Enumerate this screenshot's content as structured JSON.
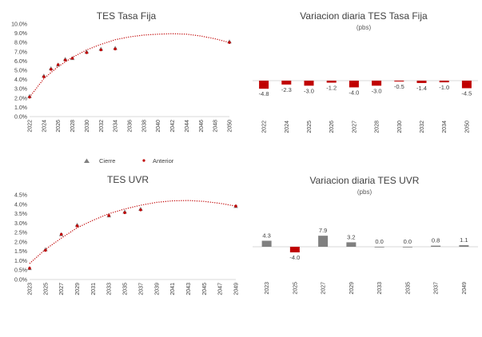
{
  "chart_data": [
    {
      "type": "scatter",
      "title": "TES Tasa Fija",
      "yticks": [
        "10.0%",
        "9.0%",
        "8.0%",
        "7.0%",
        "6.0%",
        "5.0%",
        "4.0%",
        "3.0%",
        "2.0%",
        "1.0%",
        "0.0%"
      ],
      "ylim": [
        0,
        10
      ],
      "xticks": [
        "2022",
        "2024",
        "2026",
        "2028",
        "2030",
        "2032",
        "2034",
        "2036",
        "2038",
        "2040",
        "2042",
        "2044",
        "2046",
        "2048",
        "2050"
      ],
      "xlim": [
        2022,
        2050
      ],
      "series": [
        {
          "name": "Cierre",
          "points": [
            [
              2022,
              2.2
            ],
            [
              2024,
              4.4
            ],
            [
              2025,
              5.2
            ],
            [
              2026,
              5.6
            ],
            [
              2027,
              6.2
            ],
            [
              2028,
              6.3
            ],
            [
              2030,
              7.0
            ],
            [
              2032,
              7.3
            ],
            [
              2034,
              7.4
            ],
            [
              2050,
              8.1
            ]
          ]
        },
        {
          "name": "Anterior",
          "points": [
            [
              2022,
              2.1
            ],
            [
              2024,
              4.3
            ],
            [
              2025,
              5.1
            ],
            [
              2026,
              5.6
            ],
            [
              2027,
              6.1
            ],
            [
              2028,
              6.3
            ],
            [
              2030,
              6.9
            ],
            [
              2032,
              7.2
            ],
            [
              2034,
              7.3
            ],
            [
              2050,
              8.0
            ]
          ]
        }
      ],
      "trend": {
        "name": "Anterior trend",
        "points": [
          [
            2022,
            2.1
          ],
          [
            2024,
            4.1
          ],
          [
            2026,
            5.4
          ],
          [
            2028,
            6.4
          ],
          [
            2030,
            7.2
          ],
          [
            2032,
            7.8
          ],
          [
            2034,
            8.3
          ],
          [
            2036,
            8.6
          ],
          [
            2038,
            8.8
          ],
          [
            2040,
            8.9
          ],
          [
            2042,
            8.95
          ],
          [
            2044,
            8.9
          ],
          [
            2046,
            8.7
          ],
          [
            2048,
            8.4
          ],
          [
            2050,
            8.0
          ]
        ]
      }
    },
    {
      "type": "bar",
      "title": "Variacion diaria TES Tasa Fija",
      "subtitle": "(pbs)",
      "categories": [
        "2022",
        "2024",
        "2025",
        "2026",
        "2027",
        "2028",
        "2030",
        "2032",
        "2034",
        "2050"
      ],
      "values": [
        -4.8,
        -2.3,
        -3.0,
        -1.2,
        -4.0,
        -3.0,
        -0.5,
        -1.4,
        -1.0,
        -4.5
      ],
      "labels": [
        "-4.8",
        "-2.3",
        "-3.0",
        "-1.2",
        "-4.0",
        "-3.0",
        "-0.5",
        "-1.4",
        "-1.0",
        "-4.5"
      ]
    },
    {
      "type": "scatter",
      "title": "TES UVR",
      "yticks": [
        "4.5%",
        "4.0%",
        "3.5%",
        "3.0%",
        "2.5%",
        "2.0%",
        "1.5%",
        "1.0%",
        "0.5%",
        "0.0%"
      ],
      "ylim": [
        0,
        4.5
      ],
      "xticks": [
        "2023",
        "2025",
        "2027",
        "2029",
        "2031",
        "2033",
        "2035",
        "2037",
        "2039",
        "2041",
        "2043",
        "2045",
        "2047",
        "2049"
      ],
      "xlim": [
        2023,
        2049
      ],
      "series": [
        {
          "name": "Cierre",
          "points": [
            [
              2023,
              0.6
            ],
            [
              2025,
              1.6
            ],
            [
              2027,
              2.4
            ],
            [
              2029,
              2.9
            ],
            [
              2033,
              3.4
            ],
            [
              2035,
              3.6
            ],
            [
              2037,
              3.75
            ],
            [
              2049,
              3.9
            ]
          ]
        },
        {
          "name": "Anterior",
          "points": [
            [
              2023,
              0.6
            ],
            [
              2025,
              1.55
            ],
            [
              2027,
              2.4
            ],
            [
              2029,
              2.85
            ],
            [
              2033,
              3.4
            ],
            [
              2035,
              3.55
            ],
            [
              2037,
              3.7
            ],
            [
              2049,
              3.9
            ]
          ]
        }
      ],
      "trend": {
        "name": "Anterior trend",
        "points": [
          [
            2023,
            0.85
          ],
          [
            2025,
            1.6
          ],
          [
            2027,
            2.2
          ],
          [
            2029,
            2.75
          ],
          [
            2031,
            3.15
          ],
          [
            2033,
            3.5
          ],
          [
            2035,
            3.75
          ],
          [
            2037,
            3.95
          ],
          [
            2039,
            4.1
          ],
          [
            2041,
            4.18
          ],
          [
            2043,
            4.2
          ],
          [
            2045,
            4.15
          ],
          [
            2047,
            4.05
          ],
          [
            2049,
            3.9
          ]
        ]
      }
    },
    {
      "type": "bar",
      "title": "Variacion diaria TES UVR",
      "subtitle": "(pbs)",
      "categories": [
        "2023",
        "2025",
        "2027",
        "2029",
        "2033",
        "2035",
        "2037",
        "2049"
      ],
      "values": [
        4.3,
        -4.0,
        7.9,
        3.2,
        0.0,
        0.0,
        0.8,
        1.1
      ],
      "labels": [
        "4.3",
        "-4.0",
        "7.9",
        "3.2",
        "0.0",
        "0.0",
        "0.8",
        "1.1"
      ]
    }
  ],
  "legend": {
    "cierre": "Cierre",
    "anterior": "Anterior"
  },
  "colors": {
    "cierre": "#808080",
    "anterior": "#c00000",
    "text": "#404040",
    "axis": "#d9d9d9"
  }
}
